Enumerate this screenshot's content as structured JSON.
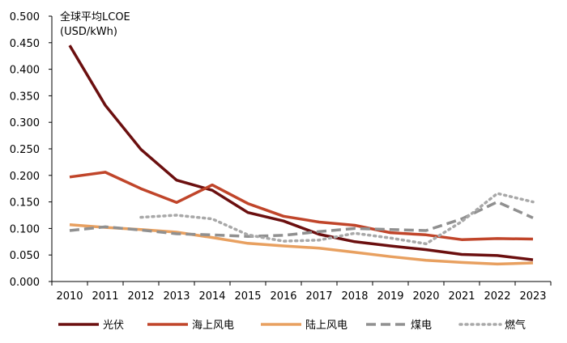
{
  "chart_data": {
    "type": "line",
    "title": "全球平均LCOE",
    "unit": "(USD/kWh)",
    "x": [
      "2010",
      "2011",
      "2012",
      "2013",
      "2014",
      "2015",
      "2016",
      "2017",
      "2018",
      "2019",
      "2020",
      "2021",
      "2022",
      "2023"
    ],
    "y_ticks": [
      "0.000",
      "0.050",
      "0.100",
      "0.150",
      "0.200",
      "0.250",
      "0.300",
      "0.350",
      "0.400",
      "0.450",
      "0.500"
    ],
    "ylim": [
      0,
      0.5
    ],
    "grid": false,
    "legend_position": "bottom",
    "series": [
      {
        "name": "光伏",
        "color": "#6B0F0F",
        "style": "solid",
        "values": [
          0.445,
          0.332,
          0.249,
          0.191,
          0.172,
          0.13,
          0.114,
          0.089,
          0.075,
          0.067,
          0.06,
          0.051,
          0.049,
          0.041
        ]
      },
      {
        "name": "海上风电",
        "color": "#C0452A",
        "style": "solid",
        "values": [
          0.197,
          0.206,
          0.175,
          0.149,
          0.182,
          0.147,
          0.123,
          0.112,
          0.106,
          0.092,
          0.088,
          0.079,
          0.081,
          0.08
        ]
      },
      {
        "name": "陆上风电",
        "color": "#E8A060",
        "style": "solid",
        "values": [
          0.107,
          0.102,
          0.098,
          0.093,
          0.083,
          0.072,
          0.067,
          0.063,
          0.055,
          0.047,
          0.04,
          0.036,
          0.033,
          0.035
        ]
      },
      {
        "name": "煤电",
        "color": "#909090",
        "style": "dash",
        "values": [
          0.096,
          0.103,
          0.097,
          0.09,
          0.088,
          0.085,
          0.087,
          0.094,
          0.1,
          0.098,
          0.096,
          0.118,
          0.15,
          0.12
        ]
      },
      {
        "name": "燃气",
        "color": "#A8A8A8",
        "style": "dot",
        "values": [
          null,
          null,
          0.121,
          0.125,
          0.118,
          0.088,
          0.076,
          0.078,
          0.091,
          0.082,
          0.071,
          0.113,
          0.166,
          0.15
        ]
      }
    ]
  }
}
